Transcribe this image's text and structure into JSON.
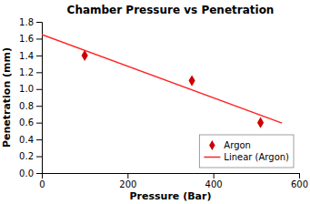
{
  "chart_data": {
    "type": "scatter",
    "title": "Chamber Pressure vs Penetration",
    "xlabel": "Pressure (Bar)",
    "ylabel": "Penetration (mm)",
    "series": [
      {
        "name": "Argon",
        "type": "scatter",
        "color": "#CC0000",
        "marker": "diamond",
        "x": [
          100,
          350,
          510
        ],
        "values": [
          1.4,
          1.1,
          0.6
        ]
      },
      {
        "name": "Linear (Argon)",
        "type": "line",
        "color": "#FF2222",
        "line_style": "solid",
        "x": [
          0,
          560
        ],
        "values": [
          1.65,
          0.595
        ]
      }
    ],
    "xlim": [
      0,
      600
    ],
    "ylim": [
      0,
      1.8
    ],
    "xticks": [
      0,
      200,
      400,
      600
    ],
    "yticks": [
      {
        "value": 0,
        "label": "0.0"
      },
      0.2,
      0.4,
      0.6,
      0.8,
      {
        "value": 1.0,
        "label": "1.0"
      },
      1.2,
      1.4,
      1.6,
      1.8
    ],
    "grid": false,
    "legend": "lower right"
  }
}
